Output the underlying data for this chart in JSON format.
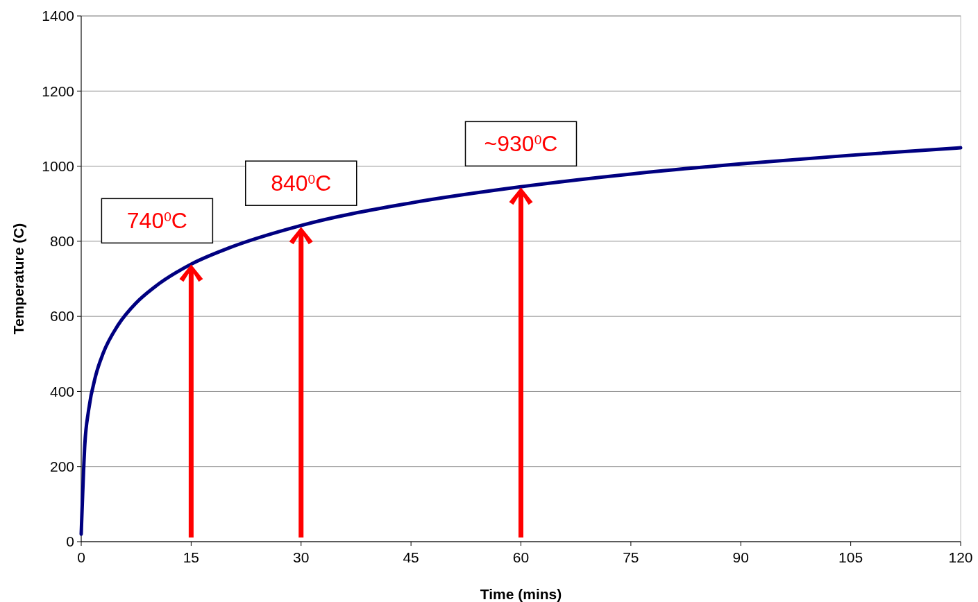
{
  "chart_data": {
    "type": "line",
    "xlabel": "Time (mins)",
    "ylabel": "Temperature (C)",
    "xlim": [
      0,
      120
    ],
    "xticks": [
      0,
      15,
      30,
      45,
      60,
      75,
      90,
      105,
      120
    ],
    "ylim": [
      0,
      1400
    ],
    "yticks": [
      0,
      200,
      400,
      600,
      800,
      1000,
      1200,
      1400
    ],
    "grid": "y",
    "series": [
      {
        "color": "#000080",
        "x": [
          0,
          0.5,
          1,
          2,
          3,
          5,
          7.5,
          10,
          15,
          20,
          30,
          45,
          60,
          75,
          90,
          105,
          120
        ],
        "values": [
          20,
          261,
          349,
          444,
          502,
          576,
          636,
          678,
          739,
          781,
          842,
          902,
          945,
          979,
          1006,
          1029,
          1049
        ]
      }
    ],
    "annotations": [
      {
        "text": "740$^{0}$C",
        "x": 15,
        "y": 740
      },
      {
        "text": "840$^{0}$C",
        "x": 30,
        "y": 840
      },
      {
        "text": "~930$^{0}$C",
        "x": 60,
        "y": 945
      }
    ]
  }
}
